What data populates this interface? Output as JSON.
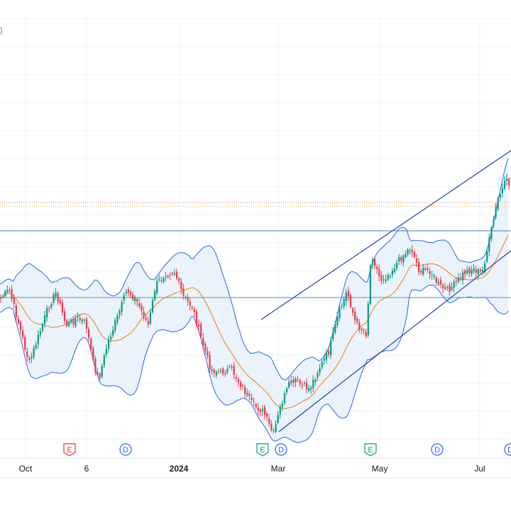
{
  "header": {
    "partial_label": ")"
  },
  "chart_data": {
    "type": "candlestick",
    "x_ticks": [
      "Oct",
      "6",
      "2024",
      "Mar",
      "May",
      "Jul"
    ],
    "indicators": [
      "bollinger-bands",
      "moving-average"
    ],
    "drawn_lines": [
      "upper-trend-line",
      "lower-trend-line",
      "horizontal-line-upper",
      "horizontal-line-lower",
      "dotted-line-red",
      "dotted-line-orange"
    ],
    "event_markers": [
      {
        "letter": "E",
        "kind": "earnings",
        "color": "#e53935"
      },
      {
        "letter": "D",
        "kind": "dividend",
        "color": "#2962ff"
      },
      {
        "letter": "E",
        "kind": "earnings",
        "color": "#089981"
      },
      {
        "letter": "D",
        "kind": "dividend",
        "color": "#2962ff"
      },
      {
        "letter": "E",
        "kind": "earnings",
        "color": "#089981"
      },
      {
        "letter": "D",
        "kind": "dividend",
        "color": "#2962ff"
      },
      {
        "letter": "D",
        "kind": "dividend",
        "color": "#2962ff"
      }
    ],
    "colors": {
      "up": "#089981",
      "down": "#f23645",
      "band": "#2962ff",
      "band_fill": "#eaf3fb",
      "ma": "#f57c00",
      "trend": "#1f3fb0",
      "hline": "#3d7fb0",
      "grid": "#f0f3fa",
      "text": "#131722"
    }
  }
}
